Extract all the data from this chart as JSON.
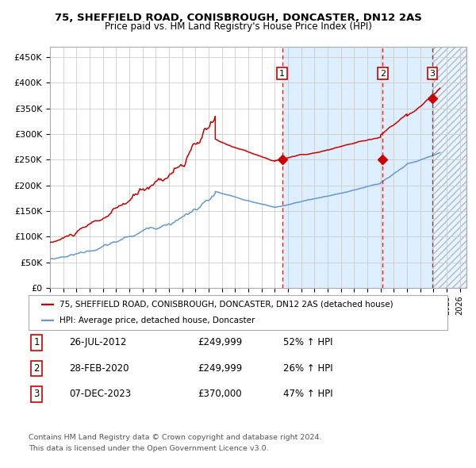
{
  "title1": "75, SHEFFIELD ROAD, CONISBROUGH, DONCASTER, DN12 2AS",
  "title2": "Price paid vs. HM Land Registry's House Price Index (HPI)",
  "ylabel_ticks": [
    "£0",
    "£50K",
    "£100K",
    "£150K",
    "£200K",
    "£250K",
    "£300K",
    "£350K",
    "£400K",
    "£450K"
  ],
  "ytick_values": [
    0,
    50000,
    100000,
    150000,
    200000,
    250000,
    300000,
    350000,
    400000,
    450000
  ],
  "ylim": [
    0,
    470000
  ],
  "xlim_start": 1995.0,
  "xlim_end": 2026.5,
  "sales": [
    {
      "label": "1",
      "date_year": 2012.56,
      "price": 249999,
      "pct": "52%",
      "date_str": "26-JUL-2012"
    },
    {
      "label": "2",
      "date_year": 2020.16,
      "price": 249999,
      "pct": "26%",
      "date_str": "28-FEB-2020"
    },
    {
      "label": "3",
      "date_year": 2023.93,
      "price": 370000,
      "pct": "47%",
      "date_str": "07-DEC-2023"
    }
  ],
  "red_line_color": "#cc0000",
  "blue_line_color": "#6699cc",
  "shade_color": "#ddeeff",
  "grid_color": "#cccccc",
  "background_color": "#ffffff",
  "legend_label_red": "75, SHEFFIELD ROAD, CONISBROUGH, DONCASTER, DN12 2AS (detached house)",
  "legend_label_blue": "HPI: Average price, detached house, Doncaster",
  "footer1": "Contains HM Land Registry data © Crown copyright and database right 2024.",
  "footer2": "This data is licensed under the Open Government Licence v3.0.",
  "sale_rows": [
    {
      "label": "1",
      "date_str": "26-JUL-2012",
      "price_str": "£249,999",
      "pct_str": "52% ↑ HPI"
    },
    {
      "label": "2",
      "date_str": "28-FEB-2020",
      "price_str": "£249,999",
      "pct_str": "26% ↑ HPI"
    },
    {
      "label": "3",
      "date_str": "07-DEC-2023",
      "price_str": "£370,000",
      "pct_str": "47% ↑ HPI"
    }
  ]
}
